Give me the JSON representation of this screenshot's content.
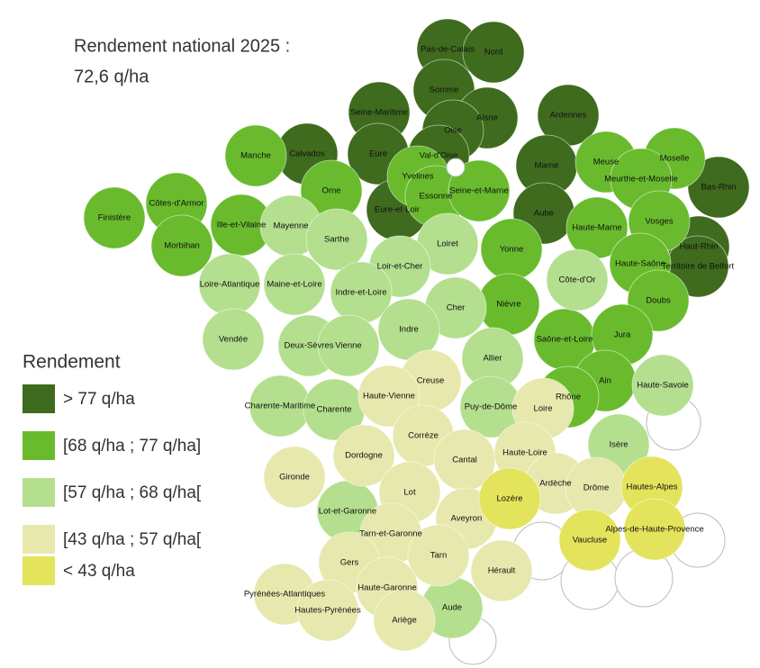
{
  "title": [
    "Rendement national 2025 :",
    "72,6 q/ha"
  ],
  "legend": {
    "title": "Rendement",
    "items": [
      {
        "label": "> 77 q/ha",
        "color": "#3e6b1d"
      },
      {
        "label": "[68 q/ha ; 77 q/ha]",
        "color": "#69bb2d"
      },
      {
        "label": "[57 q/ha ; 68 q/ha[",
        "color": "#b4df8e"
      },
      {
        "label": "[43 q/ha ; 57 q/ha[",
        "color": "#e7e8ad"
      },
      {
        "label": "< 43 q/ha",
        "color": "#e4e35c"
      }
    ]
  },
  "departments": [
    {
      "label": "Pas-de-Calais",
      "class": 0
    },
    {
      "label": "Nord",
      "class": 0
    },
    {
      "label": "Somme",
      "class": 0
    },
    {
      "label": "Seine-Maritime",
      "class": 0
    },
    {
      "label": "Aisne",
      "class": 0
    },
    {
      "label": "Ardennes",
      "class": 0
    },
    {
      "label": "Oise",
      "class": 0
    },
    {
      "label": "Calvados",
      "class": 0
    },
    {
      "label": "Eure",
      "class": 0
    },
    {
      "label": "Marne",
      "class": 0
    },
    {
      "label": "Val-d'Oise",
      "class": 0
    },
    {
      "label": "Eure-et-Loir",
      "class": 0
    },
    {
      "label": "Aube",
      "class": 0
    },
    {
      "label": "Bas-Rhin",
      "class": 0
    },
    {
      "label": "Haut-Rhin",
      "class": 0
    },
    {
      "label": "Territoire de Belfort",
      "class": 0
    },
    {
      "label": "Manche",
      "class": 1
    },
    {
      "label": "Côtes-d'Armor",
      "class": 1
    },
    {
      "label": "Finistère",
      "class": 1
    },
    {
      "label": "Ille-et-Vilaine",
      "class": 1
    },
    {
      "label": "Morbihan",
      "class": 1
    },
    {
      "label": "Orne",
      "class": 1
    },
    {
      "label": "Yvelines",
      "class": 1
    },
    {
      "label": "Essonne",
      "class": 1
    },
    {
      "label": "Seine-et-Marne",
      "class": 1
    },
    {
      "label": "Meuse",
      "class": 1
    },
    {
      "label": "Moselle",
      "class": 1
    },
    {
      "label": "Meurthe-et-Moselle",
      "class": 1
    },
    {
      "label": "Haute-Marne",
      "class": 1
    },
    {
      "label": "Vosges",
      "class": 1
    },
    {
      "label": "Haute-Saône",
      "class": 1
    },
    {
      "label": "Yonne",
      "class": 1
    },
    {
      "label": "Nièvre",
      "class": 1
    },
    {
      "label": "Doubs",
      "class": 1
    },
    {
      "label": "Saône-et-Loire",
      "class": 1
    },
    {
      "label": "Jura",
      "class": 1
    },
    {
      "label": "Ain",
      "class": 1
    },
    {
      "label": "Rhône",
      "class": 1
    },
    {
      "label": "Mayenne",
      "class": 2
    },
    {
      "label": "Sarthe",
      "class": 2
    },
    {
      "label": "Loiret",
      "class": 2
    },
    {
      "label": "Loire-Atlantique",
      "class": 2
    },
    {
      "label": "Maine-et-Loire",
      "class": 2
    },
    {
      "label": "Loir-et-Cher",
      "class": 2
    },
    {
      "label": "Indre-et-Loire",
      "class": 2
    },
    {
      "label": "Cher",
      "class": 2
    },
    {
      "label": "Côte-d'Or",
      "class": 2
    },
    {
      "label": "Vendée",
      "class": 2
    },
    {
      "label": "Deux-Sèvres",
      "class": 2
    },
    {
      "label": "Vienne",
      "class": 2
    },
    {
      "label": "Indre",
      "class": 2
    },
    {
      "label": "Allier",
      "class": 2
    },
    {
      "label": "Charente-Maritime",
      "class": 2
    },
    {
      "label": "Charente",
      "class": 2
    },
    {
      "label": "Puy-de-Dôme",
      "class": 2
    },
    {
      "label": "Haute-Savoie",
      "class": 2
    },
    {
      "label": "Isère",
      "class": 2
    },
    {
      "label": "Lot-et-Garonne",
      "class": 2
    },
    {
      "label": "Aude",
      "class": 2
    },
    {
      "label": "Creuse",
      "class": 3
    },
    {
      "label": "Haute-Vienne",
      "class": 3
    },
    {
      "label": "Loire",
      "class": 3
    },
    {
      "label": "Corrèze",
      "class": 3
    },
    {
      "label": "Dordogne",
      "class": 3
    },
    {
      "label": "Gironde",
      "class": 3
    },
    {
      "label": "Cantal",
      "class": 3
    },
    {
      "label": "Haute-Loire",
      "class": 3
    },
    {
      "label": "Ardèche",
      "class": 3
    },
    {
      "label": "Drôme",
      "class": 3
    },
    {
      "label": "Lot",
      "class": 3
    },
    {
      "label": "Aveyron",
      "class": 3
    },
    {
      "label": "Tarn-et-Garonne",
      "class": 3
    },
    {
      "label": "Gers",
      "class": 3
    },
    {
      "label": "Tarn",
      "class": 3
    },
    {
      "label": "Hérault",
      "class": 3
    },
    {
      "label": "Haute-Garonne",
      "class": 3
    },
    {
      "label": "Pyrénées-Atlantiques",
      "class": 3
    },
    {
      "label": "Hautes-Pyrénées",
      "class": 3
    },
    {
      "label": "Ariège",
      "class": 3
    },
    {
      "label": "Lozère",
      "class": 4
    },
    {
      "label": "Hautes-Alpes",
      "class": 4
    },
    {
      "label": "Alpes-de-Haute-Provence",
      "class": 4
    },
    {
      "label": "Vaucluse",
      "class": 4
    }
  ]
}
